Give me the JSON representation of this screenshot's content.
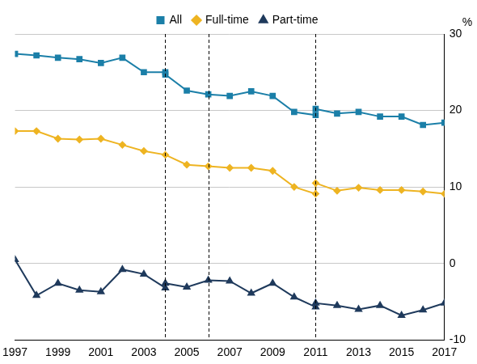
{
  "chart_data": {
    "type": "line",
    "y_label": "%",
    "xlim": [
      1997,
      2017
    ],
    "xticks": [
      1997,
      1999,
      2001,
      2003,
      2005,
      2007,
      2009,
      2011,
      2013,
      2015,
      2017
    ],
    "ylim": [
      -10,
      30
    ],
    "yticks": [
      -10,
      0,
      10,
      20,
      30
    ],
    "grid": true,
    "legend": "top",
    "vertical_lines": [
      2004,
      2006,
      2011
    ],
    "series": [
      {
        "name": "All",
        "color": "#1b7fa8",
        "marker": "square",
        "line_style": "solid",
        "x": [
          1997,
          1998,
          1999,
          2000,
          2001,
          2002,
          2003,
          2004,
          2004,
          2005,
          2006,
          2007,
          2008,
          2009,
          2010,
          2011,
          2011,
          2012,
          2013,
          2014,
          2015,
          2016,
          2017
        ],
        "values": [
          27.4,
          27.2,
          26.9,
          26.7,
          26.2,
          26.9,
          25.0,
          25.0,
          24.7,
          22.6,
          22.1,
          21.9,
          22.5,
          21.9,
          19.8,
          19.4,
          20.2,
          19.6,
          19.8,
          19.2,
          19.2,
          18.1,
          18.4
        ]
      },
      {
        "name": "Full-time",
        "color": "#eeb422",
        "marker": "diamond",
        "line_style": "solid",
        "x": [
          1997,
          1998,
          1999,
          2000,
          2001,
          2002,
          2003,
          2004,
          2005,
          2006,
          2007,
          2008,
          2009,
          2010,
          2011,
          2011,
          2012,
          2013,
          2014,
          2015,
          2016,
          2017
        ],
        "values": [
          17.3,
          17.3,
          16.3,
          16.2,
          16.3,
          15.5,
          14.7,
          14.2,
          12.9,
          12.7,
          12.5,
          12.5,
          12.1,
          10.0,
          9.1,
          10.5,
          9.5,
          9.9,
          9.6,
          9.6,
          9.4,
          9.1
        ]
      },
      {
        "name": "Part-time",
        "color": "#1f3a5c",
        "marker": "triangle",
        "line_style": "solid",
        "x": [
          1997,
          1998,
          1999,
          2000,
          2001,
          2002,
          2003,
          2004,
          2004,
          2005,
          2006,
          2007,
          2008,
          2009,
          2010,
          2011,
          2011,
          2012,
          2013,
          2014,
          2015,
          2016,
          2017
        ],
        "values": [
          0.5,
          -4.2,
          -2.6,
          -3.5,
          -3.7,
          -0.8,
          -1.4,
          -3.2,
          -2.6,
          -3.1,
          -2.2,
          -2.3,
          -3.9,
          -2.6,
          -4.4,
          -5.7,
          -5.2,
          -5.5,
          -6.0,
          -5.5,
          -6.8,
          -6.1,
          -5.2
        ]
      }
    ]
  }
}
